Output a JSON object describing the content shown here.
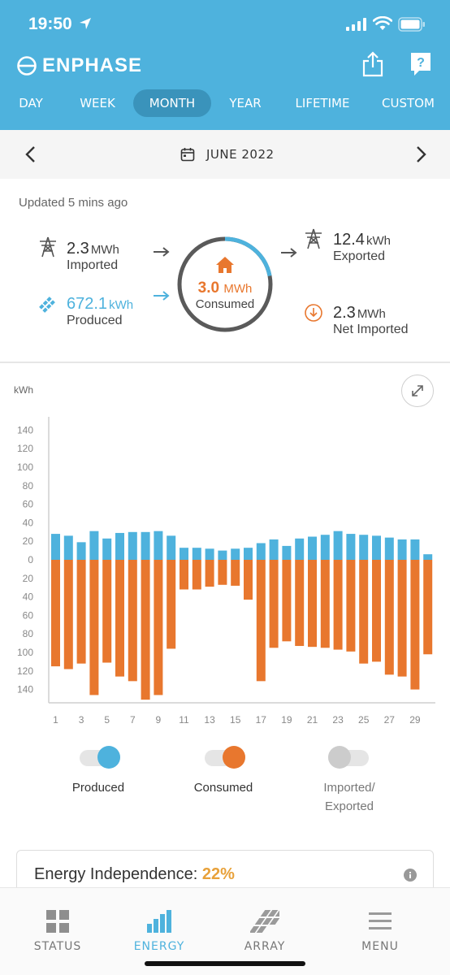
{
  "status_bar": {
    "time": "19:50"
  },
  "brand": {
    "name": "ENPHASE"
  },
  "period_tabs": [
    {
      "label": "DAY",
      "active": false
    },
    {
      "label": "WEEK",
      "active": false
    },
    {
      "label": "MONTH",
      "active": true
    },
    {
      "label": "YEAR",
      "active": false
    },
    {
      "label": "LIFETIME",
      "active": false
    },
    {
      "label": "CUSTOM",
      "active": false
    }
  ],
  "date_nav": {
    "label": "JUNE 2022"
  },
  "summary": {
    "updated": "Updated 5 mins ago",
    "imported": {
      "value": "2.3",
      "unit": "MWh",
      "label": "Imported"
    },
    "produced": {
      "value": "672.1",
      "unit": "kWh",
      "label": "Produced"
    },
    "consumed": {
      "value": "3.0",
      "unit": "MWh",
      "label": "Consumed",
      "produced_share": 0.22
    },
    "exported": {
      "value": "12.4",
      "unit": "kWh",
      "label": "Exported"
    },
    "net_imported": {
      "value": "2.3",
      "unit": "MWh",
      "label": "Net Imported"
    }
  },
  "chart": {
    "unit_label": "kWh"
  },
  "chart_data": {
    "type": "bar",
    "ylabel": "kWh",
    "ylim": [
      -150,
      150
    ],
    "y_ticks": [
      "140",
      "120",
      "100",
      "80",
      "60",
      "40",
      "20",
      "0",
      "20",
      "40",
      "60",
      "80",
      "100",
      "120",
      "140"
    ],
    "x_tick_labels": [
      "1",
      "3",
      "5",
      "7",
      "9",
      "11",
      "13",
      "15",
      "17",
      "19",
      "21",
      "23",
      "25",
      "27",
      "29"
    ],
    "categories": [
      "1",
      "2",
      "3",
      "4",
      "5",
      "6",
      "7",
      "8",
      "9",
      "10",
      "11",
      "12",
      "13",
      "14",
      "15",
      "16",
      "17",
      "18",
      "19",
      "20",
      "21",
      "22",
      "23",
      "24",
      "25",
      "26",
      "27",
      "28",
      "29",
      "30"
    ],
    "series": [
      {
        "name": "Produced",
        "color": "#4eb2dd",
        "values": [
          28,
          26,
          19,
          31,
          23,
          29,
          30,
          30,
          31,
          26,
          13,
          13,
          12,
          10,
          12,
          13,
          18,
          22,
          15,
          23,
          25,
          27,
          31,
          28,
          27,
          26,
          24,
          22,
          22,
          6
        ]
      },
      {
        "name": "Consumed",
        "color": "#e8772e",
        "values": [
          -115,
          -118,
          -112,
          -146,
          -111,
          -126,
          -131,
          -151,
          -146,
          -96,
          -32,
          -32,
          -29,
          -27,
          -28,
          -43,
          -131,
          -95,
          -88,
          -93,
          -94,
          -95,
          -97,
          -99,
          -112,
          -110,
          -124,
          -126,
          -140,
          -102
        ]
      }
    ],
    "legend": [
      {
        "label": "Produced",
        "color": "#4eb2dd",
        "on": true
      },
      {
        "label": "Consumed",
        "color": "#e8772e",
        "on": true
      },
      {
        "label": "Imported/",
        "label2": "Exported",
        "color": "#cccccc",
        "on": false
      }
    ]
  },
  "card": {
    "title": "Energy Independence:",
    "value": "22%"
  },
  "bottom_nav": [
    {
      "label": "STATUS",
      "icon": "status-grid-icon",
      "active": false
    },
    {
      "label": "ENERGY",
      "icon": "energy-bars-icon",
      "active": true
    },
    {
      "label": "ARRAY",
      "icon": "array-panels-icon",
      "active": false
    },
    {
      "label": "MENU",
      "icon": "menu-hamburger-icon",
      "active": false
    }
  ]
}
